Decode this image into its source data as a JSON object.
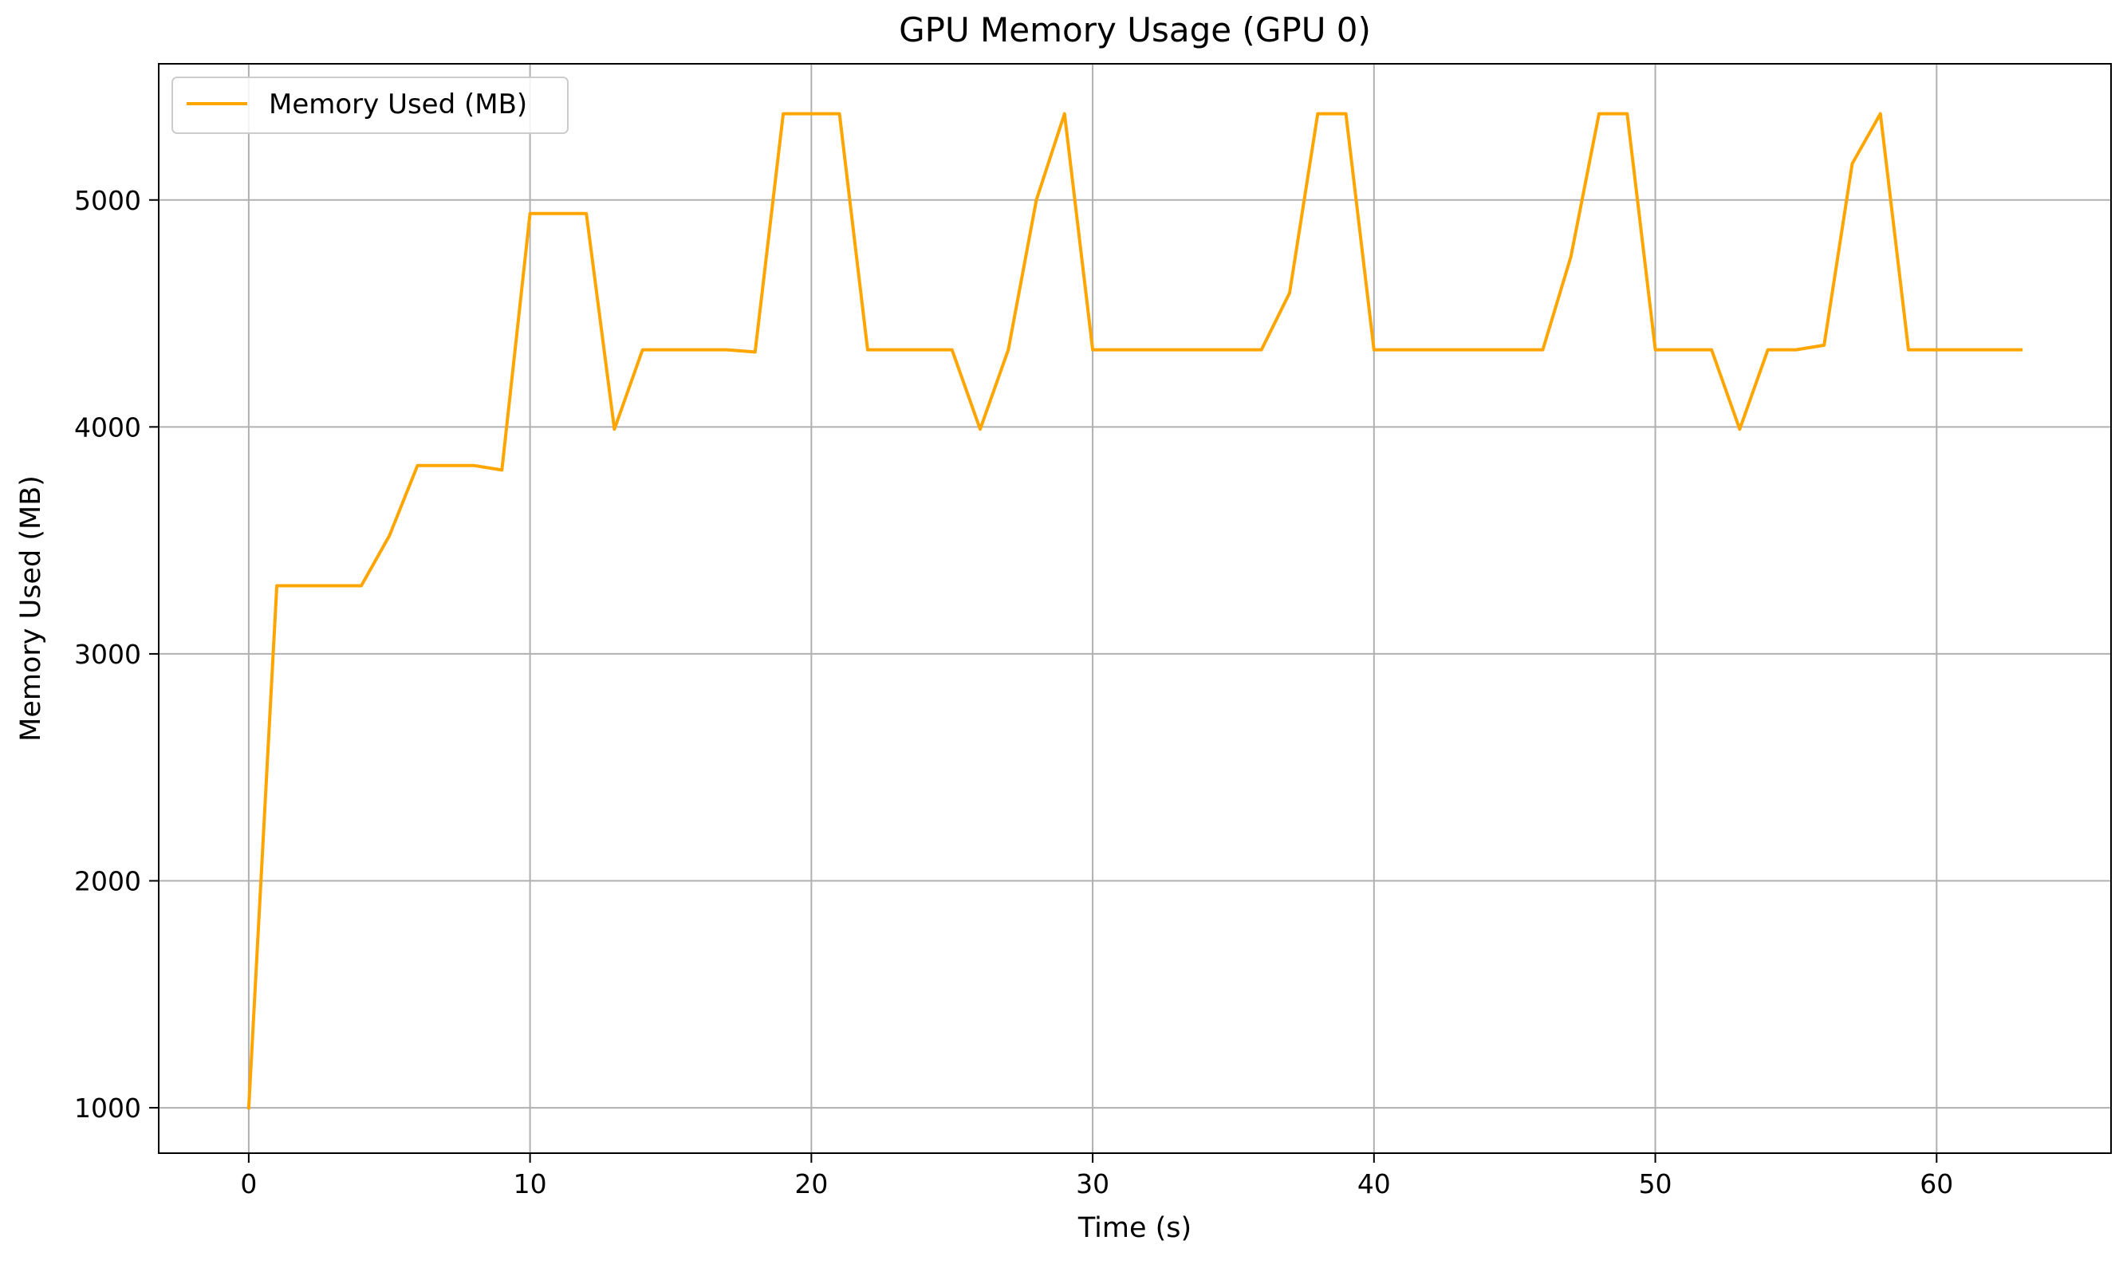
{
  "chart_data": {
    "type": "line",
    "title": "GPU Memory Usage (GPU 0)",
    "xlabel": "Time (s)",
    "ylabel": "Memory Used (MB)",
    "xlim": [
      -3.2,
      66.2
    ],
    "ylim": [
      800,
      5600
    ],
    "xticks": [
      0,
      10,
      20,
      30,
      40,
      50,
      60
    ],
    "yticks": [
      1000,
      2000,
      3000,
      4000,
      5000
    ],
    "grid": true,
    "legend_position": "upper-left",
    "series": [
      {
        "name": "Memory Used (MB)",
        "color": "#FFA500",
        "x": [
          0,
          1,
          2,
          3,
          4,
          5,
          6,
          7,
          8,
          9,
          10,
          11,
          12,
          13,
          14,
          15,
          16,
          17,
          18,
          19,
          20,
          21,
          22,
          23,
          24,
          25,
          26,
          27,
          28,
          29,
          30,
          31,
          32,
          33,
          34,
          35,
          36,
          37,
          38,
          39,
          40,
          41,
          42,
          43,
          44,
          45,
          46,
          47,
          48,
          49,
          50,
          51,
          52,
          53,
          54,
          55,
          56,
          57,
          58,
          59,
          60,
          61,
          62,
          63
        ],
        "y": [
          1000,
          3300,
          3300,
          3300,
          3300,
          3520,
          3830,
          3830,
          3830,
          3810,
          4940,
          4940,
          4940,
          3990,
          4340,
          4340,
          4340,
          4340,
          4330,
          5380,
          5380,
          5380,
          4340,
          4340,
          4340,
          4340,
          3990,
          4340,
          5000,
          5380,
          4340,
          4340,
          4340,
          4340,
          4340,
          4340,
          4340,
          4590,
          5380,
          5380,
          4340,
          4340,
          4340,
          4340,
          4340,
          4340,
          4340,
          4750,
          5380,
          5380,
          4340,
          4340,
          4340,
          3990,
          4340,
          4340,
          4360,
          5160,
          5380,
          4340,
          4340,
          4340,
          4340,
          4340
        ]
      }
    ]
  }
}
